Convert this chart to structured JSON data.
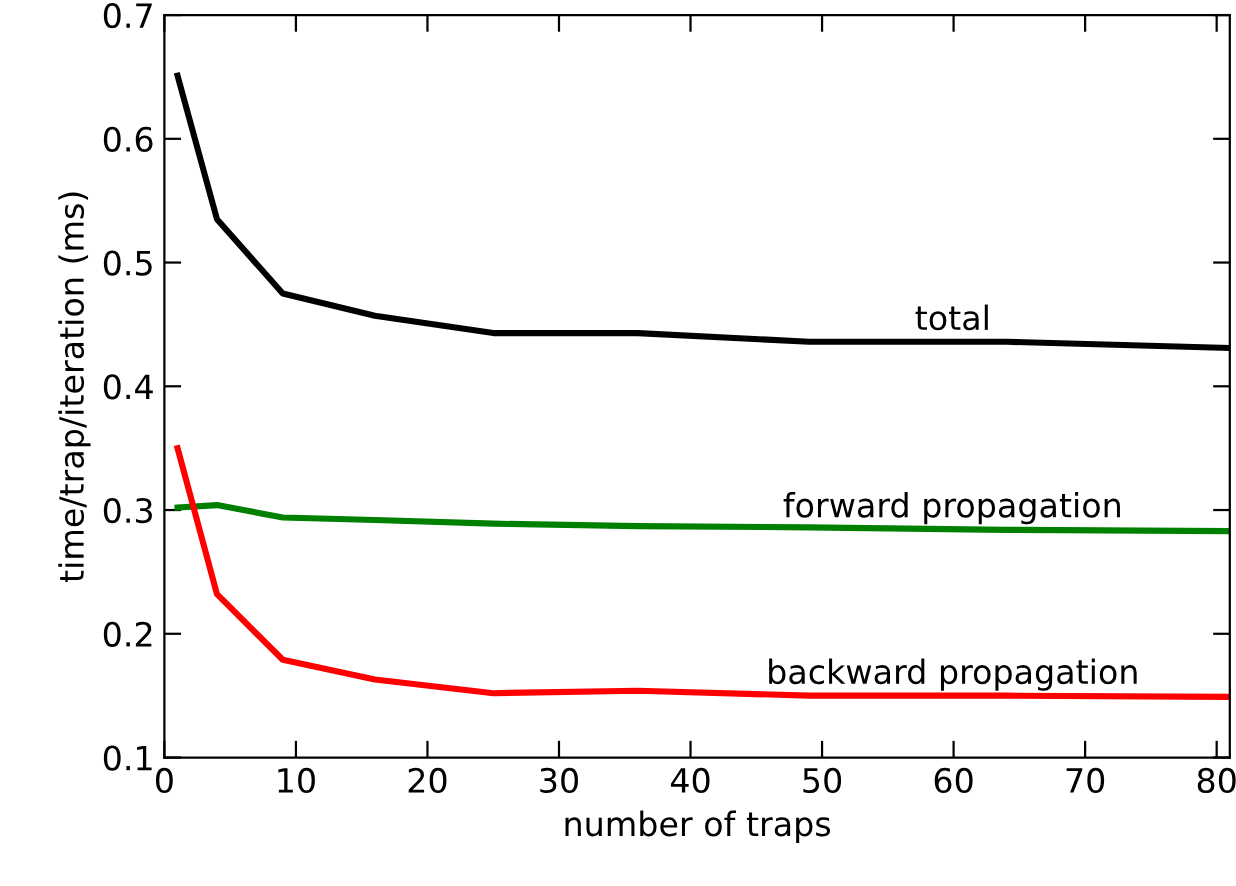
{
  "chart_data": {
    "type": "line",
    "xlabel": "number of traps",
    "ylabel": "time/trap/iteration (ms)",
    "x": [
      1,
      4,
      9,
      16,
      25,
      36,
      49,
      64,
      81
    ],
    "series": [
      {
        "name": "total",
        "color": "#000000",
        "values": [
          0.651,
          0.535,
          0.475,
          0.457,
          0.443,
          0.443,
          0.436,
          0.436,
          0.431
        ]
      },
      {
        "name": "forward propagation",
        "color": "#008000",
        "values": [
          0.302,
          0.304,
          0.294,
          0.292,
          0.289,
          0.287,
          0.286,
          0.284,
          0.283
        ]
      },
      {
        "name": "backward propagation",
        "color": "#ff0000",
        "values": [
          0.35,
          0.232,
          0.179,
          0.163,
          0.152,
          0.154,
          0.15,
          0.15,
          0.149
        ]
      }
    ],
    "xlim": [
      0,
      81
    ],
    "xticks": [
      0,
      10,
      20,
      30,
      40,
      50,
      60,
      70,
      80
    ],
    "ylim": [
      0.1,
      0.7
    ],
    "yticks": [
      0.1,
      0.2,
      0.3,
      0.4,
      0.5,
      0.6,
      0.7
    ],
    "grid": false,
    "legend": false,
    "marker": "none",
    "line_style": "solid"
  }
}
